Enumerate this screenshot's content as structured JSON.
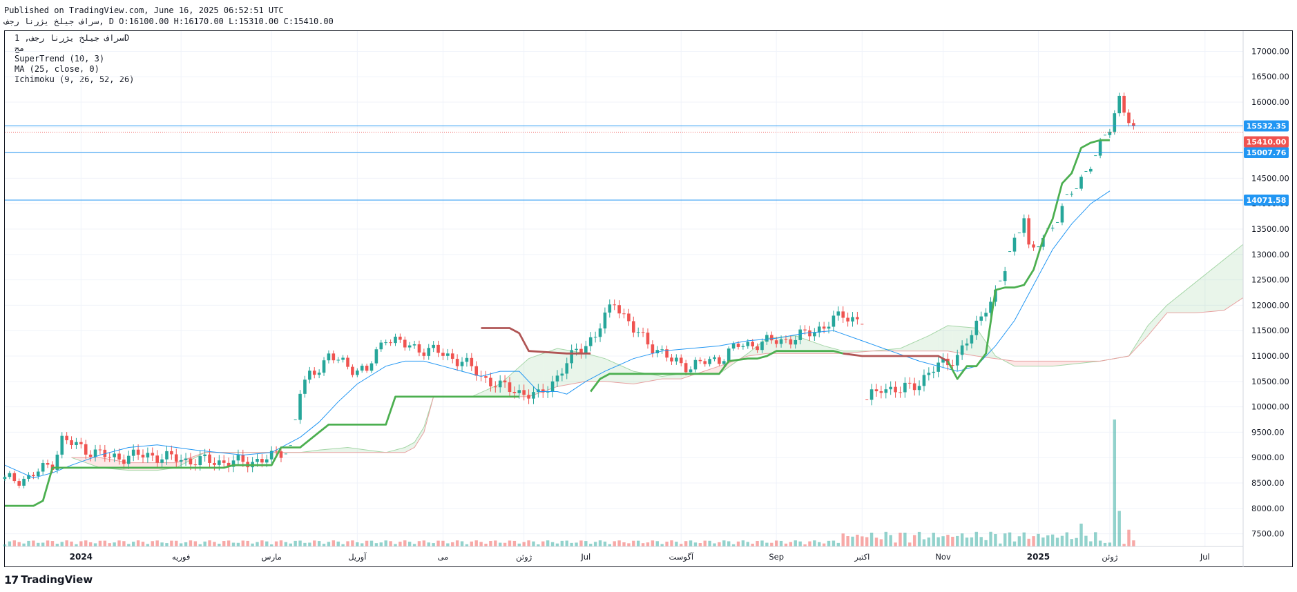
{
  "header": {
    "published": "Published on TradingView.com, June 16, 2025 06:52:51 UTC",
    "symbol_line": "سراف جیلخ یژرنا رجف, D O:16100.00 H:16170.00 L:15310.00 C:15410.00"
  },
  "legend": {
    "line1": "سراف جیلخ یژرنا رجف, 1D",
    "line2": "مج",
    "line3": "SuperTrend (10, 3)",
    "line4": "MA (25, close, 0)",
    "line5": "Ichimoku (9, 26, 52, 26)"
  },
  "brand": {
    "logo_icon": "tradingview-logo-icon",
    "name": "TradingView"
  },
  "colors": {
    "up": "#26a69a",
    "down": "#ef5350",
    "supertrend_up": "#4caf50",
    "supertrend_down": "#b05555",
    "ma": "#2196f3",
    "level": "#2196f3"
  },
  "chart_data": {
    "type": "candlestick",
    "y_ticks": [
      7500,
      8000,
      8500,
      9000,
      9500,
      10000,
      10500,
      11000,
      11500,
      12000,
      12500,
      13000,
      13500,
      14000,
      14500,
      15000,
      15500,
      16000,
      16500,
      17000
    ],
    "y_tick_labels": [
      "7500.00",
      "8000.00",
      "8500.00",
      "9000.00",
      "9500.00",
      "10000.00",
      "10500.00",
      "11000.00",
      "11500.00",
      "12000.00",
      "12500.00",
      "13000.00",
      "13500.00",
      "14000.00",
      "14500.00",
      "15000.00",
      "15500.00",
      "16000.00",
      "16500.00",
      "17000.00"
    ],
    "ylim": [
      7250,
      17400
    ],
    "x_labels": [
      {
        "label": "2024",
        "bold": true,
        "i": 16
      },
      {
        "label": "فوریه",
        "i": 37
      },
      {
        "label": "مارس",
        "i": 56
      },
      {
        "label": "آوریل",
        "i": 74
      },
      {
        "label": "می",
        "i": 92
      },
      {
        "label": "ژوئن",
        "i": 109
      },
      {
        "label": "Jul",
        "i": 122
      },
      {
        "label": "آگوست",
        "i": 142
      },
      {
        "label": "Sep",
        "i": 162
      },
      {
        "label": "اکتبر",
        "i": 180
      },
      {
        "label": "Nov",
        "i": 197
      },
      {
        "label": "2025",
        "bold": true,
        "i": 217
      },
      {
        "label": "ژوئن",
        "i": 232
      },
      {
        "label": "Jul",
        "i": 252
      }
    ],
    "levels": [
      15532.35,
      15007.76,
      14071.58
    ],
    "level_labels": [
      "15532.35",
      "15007.76",
      "14071.58"
    ],
    "last_price": 15410,
    "last_price_label": "15410.00",
    "segments": [
      [
        0,
        8560
      ],
      [
        5,
        8600
      ],
      [
        10,
        8900
      ],
      [
        12,
        9350
      ],
      [
        16,
        9200
      ],
      [
        22,
        9000
      ],
      [
        30,
        9050
      ],
      [
        38,
        8950
      ],
      [
        50,
        8900
      ],
      [
        56,
        9000
      ],
      [
        60,
        9200
      ],
      [
        62,
        10300
      ],
      [
        64,
        10600
      ],
      [
        68,
        11000
      ],
      [
        72,
        10800
      ],
      [
        76,
        10700
      ],
      [
        80,
        11400
      ],
      [
        84,
        11200
      ],
      [
        90,
        11100
      ],
      [
        96,
        10900
      ],
      [
        100,
        10600
      ],
      [
        104,
        10400
      ],
      [
        108,
        10300
      ],
      [
        112,
        10200
      ],
      [
        116,
        10600
      ],
      [
        120,
        11100
      ],
      [
        124,
        11400
      ],
      [
        128,
        12100
      ],
      [
        132,
        11500
      ],
      [
        136,
        11200
      ],
      [
        140,
        10900
      ],
      [
        144,
        10800
      ],
      [
        150,
        10950
      ],
      [
        154,
        11200
      ],
      [
        158,
        11250
      ],
      [
        162,
        11300
      ],
      [
        166,
        11350
      ],
      [
        170,
        11500
      ],
      [
        176,
        11800
      ],
      [
        180,
        11700
      ],
      [
        181,
        10100
      ],
      [
        184,
        10400
      ],
      [
        188,
        10300
      ],
      [
        192,
        10500
      ],
      [
        196,
        10800
      ],
      [
        200,
        11000
      ],
      [
        203,
        11400
      ],
      [
        206,
        12000
      ],
      [
        208,
        12200
      ],
      [
        210,
        12700
      ],
      [
        212,
        13300
      ],
      [
        214,
        13800
      ],
      [
        215,
        13100
      ],
      [
        216,
        13050
      ],
      [
        220,
        13600
      ],
      [
        226,
        14500
      ],
      [
        230,
        15100
      ],
      [
        232,
        15500
      ],
      [
        234,
        16100
      ],
      [
        237,
        15410
      ]
    ],
    "volume_spikes": [
      [
        233,
        9750
      ],
      [
        234,
        7950
      ],
      [
        236,
        7580
      ],
      [
        226,
        7700
      ]
    ],
    "supertrend": {
      "up": [
        [
          0,
          8050
        ],
        [
          6,
          8050
        ],
        [
          8,
          8150
        ],
        [
          10,
          8800
        ],
        [
          20,
          8800
        ],
        [
          30,
          8800
        ],
        [
          40,
          8800
        ],
        [
          46,
          8800
        ],
        [
          48,
          8850
        ],
        [
          56,
          8850
        ],
        [
          58,
          9200
        ],
        [
          62,
          9200
        ],
        [
          66,
          9500
        ],
        [
          68,
          9650
        ],
        [
          74,
          9650
        ],
        [
          80,
          9650
        ],
        [
          82,
          10200
        ],
        [
          94,
          10200
        ],
        [
          98,
          10200
        ],
        [
          100,
          10200
        ],
        [
          104,
          10200
        ],
        [
          108,
          10200
        ]
      ],
      "down": [
        [
          100,
          11550
        ],
        [
          106,
          11550
        ],
        [
          108,
          11450
        ],
        [
          110,
          11100
        ],
        [
          118,
          11050
        ],
        [
          123,
          11050
        ]
      ],
      "up2": [
        [
          123,
          10300
        ],
        [
          125,
          10550
        ],
        [
          127,
          10650
        ],
        [
          140,
          10650
        ],
        [
          150,
          10650
        ],
        [
          152,
          10900
        ],
        [
          156,
          10950
        ],
        [
          158,
          10950
        ],
        [
          160,
          11000
        ],
        [
          162,
          11100
        ],
        [
          166,
          11100
        ],
        [
          170,
          11100
        ],
        [
          174,
          11100
        ],
        [
          176,
          11050
        ]
      ],
      "down2": [
        [
          176,
          11050
        ],
        [
          180,
          11000
        ],
        [
          196,
          11000
        ],
        [
          198,
          10900
        ]
      ],
      "up3": [
        [
          198,
          10900
        ],
        [
          200,
          10550
        ],
        [
          202,
          10800
        ],
        [
          204,
          10800
        ],
        [
          206,
          11050
        ],
        [
          208,
          12300
        ],
        [
          210,
          12350
        ],
        [
          212,
          12350
        ],
        [
          214,
          12400
        ],
        [
          216,
          12700
        ],
        [
          218,
          13300
        ],
        [
          220,
          13700
        ],
        [
          222,
          14400
        ],
        [
          224,
          14600
        ],
        [
          226,
          15100
        ],
        [
          228,
          15200
        ],
        [
          230,
          15250
        ],
        [
          232,
          15250
        ]
      ]
    },
    "ma": [
      [
        0,
        8850
      ],
      [
        6,
        8600
      ],
      [
        10,
        8700
      ],
      [
        14,
        8850
      ],
      [
        20,
        9050
      ],
      [
        26,
        9200
      ],
      [
        32,
        9250
      ],
      [
        40,
        9150
      ],
      [
        50,
        9050
      ],
      [
        56,
        9100
      ],
      [
        62,
        9400
      ],
      [
        66,
        9700
      ],
      [
        70,
        10100
      ],
      [
        74,
        10450
      ],
      [
        80,
        10800
      ],
      [
        84,
        10900
      ],
      [
        88,
        10900
      ],
      [
        92,
        10800
      ],
      [
        96,
        10700
      ],
      [
        100,
        10600
      ],
      [
        104,
        10700
      ],
      [
        108,
        10700
      ],
      [
        112,
        10300
      ],
      [
        116,
        10300
      ],
      [
        118,
        10250
      ],
      [
        122,
        10500
      ],
      [
        126,
        10700
      ],
      [
        132,
        10950
      ],
      [
        138,
        11100
      ],
      [
        144,
        11150
      ],
      [
        150,
        11200
      ],
      [
        156,
        11300
      ],
      [
        162,
        11350
      ],
      [
        168,
        11450
      ],
      [
        174,
        11500
      ],
      [
        180,
        11300
      ],
      [
        186,
        11100
      ],
      [
        192,
        10900
      ],
      [
        196,
        10800
      ],
      [
        200,
        10700
      ],
      [
        204,
        10800
      ],
      [
        208,
        11200
      ],
      [
        212,
        11700
      ],
      [
        216,
        12400
      ],
      [
        220,
        13100
      ],
      [
        224,
        13600
      ],
      [
        228,
        14000
      ],
      [
        232,
        14250
      ]
    ],
    "cloud_a": [
      [
        14,
        9000
      ],
      [
        20,
        8800
      ],
      [
        26,
        8750
      ],
      [
        32,
        8750
      ],
      [
        36,
        8800
      ],
      [
        42,
        9100
      ],
      [
        50,
        9100
      ],
      [
        58,
        9100
      ],
      [
        62,
        9100
      ],
      [
        66,
        9150
      ],
      [
        72,
        9200
      ],
      [
        76,
        9150
      ],
      [
        80,
        9100
      ],
      [
        84,
        9200
      ],
      [
        86,
        9300
      ],
      [
        88,
        9600
      ],
      [
        90,
        10200
      ],
      [
        98,
        10200
      ],
      [
        104,
        10450
      ],
      [
        110,
        10950
      ],
      [
        116,
        11150
      ],
      [
        122,
        11050
      ],
      [
        126,
        10950
      ],
      [
        132,
        10700
      ],
      [
        138,
        10600
      ],
      [
        142,
        10650
      ],
      [
        150,
        10650
      ],
      [
        156,
        11050
      ],
      [
        160,
        11350
      ],
      [
        166,
        11400
      ],
      [
        172,
        11200
      ],
      [
        176,
        11100
      ],
      [
        182,
        11100
      ],
      [
        188,
        11150
      ],
      [
        194,
        11400
      ],
      [
        198,
        11600
      ],
      [
        204,
        11550
      ],
      [
        208,
        11000
      ],
      [
        212,
        10800
      ],
      [
        220,
        10800
      ],
      [
        230,
        10900
      ],
      [
        236,
        11000
      ],
      [
        240,
        11600
      ],
      [
        244,
        12000
      ],
      [
        250,
        12450
      ],
      [
        256,
        12900
      ],
      [
        260,
        13200
      ]
    ],
    "cloud_b": [
      [
        14,
        9000
      ],
      [
        20,
        9000
      ],
      [
        26,
        8900
      ],
      [
        32,
        8900
      ],
      [
        36,
        8900
      ],
      [
        42,
        9100
      ],
      [
        50,
        9100
      ],
      [
        58,
        9100
      ],
      [
        62,
        9100
      ],
      [
        66,
        9100
      ],
      [
        72,
        9100
      ],
      [
        76,
        9100
      ],
      [
        80,
        9100
      ],
      [
        84,
        9100
      ],
      [
        86,
        9200
      ],
      [
        88,
        9500
      ],
      [
        90,
        10200
      ],
      [
        98,
        10200
      ],
      [
        104,
        10200
      ],
      [
        110,
        10200
      ],
      [
        116,
        10400
      ],
      [
        122,
        10500
      ],
      [
        126,
        10500
      ],
      [
        132,
        10450
      ],
      [
        138,
        10550
      ],
      [
        142,
        10550
      ],
      [
        150,
        10800
      ],
      [
        156,
        11000
      ],
      [
        160,
        11050
      ],
      [
        166,
        11050
      ],
      [
        172,
        11050
      ],
      [
        176,
        11050
      ],
      [
        182,
        11100
      ],
      [
        188,
        11100
      ],
      [
        194,
        11100
      ],
      [
        198,
        11100
      ],
      [
        204,
        11000
      ],
      [
        208,
        10950
      ],
      [
        212,
        10900
      ],
      [
        220,
        10900
      ],
      [
        230,
        10900
      ],
      [
        236,
        11000
      ],
      [
        240,
        11400
      ],
      [
        244,
        11850
      ],
      [
        250,
        11850
      ],
      [
        256,
        11900
      ],
      [
        260,
        12150
      ]
    ]
  }
}
